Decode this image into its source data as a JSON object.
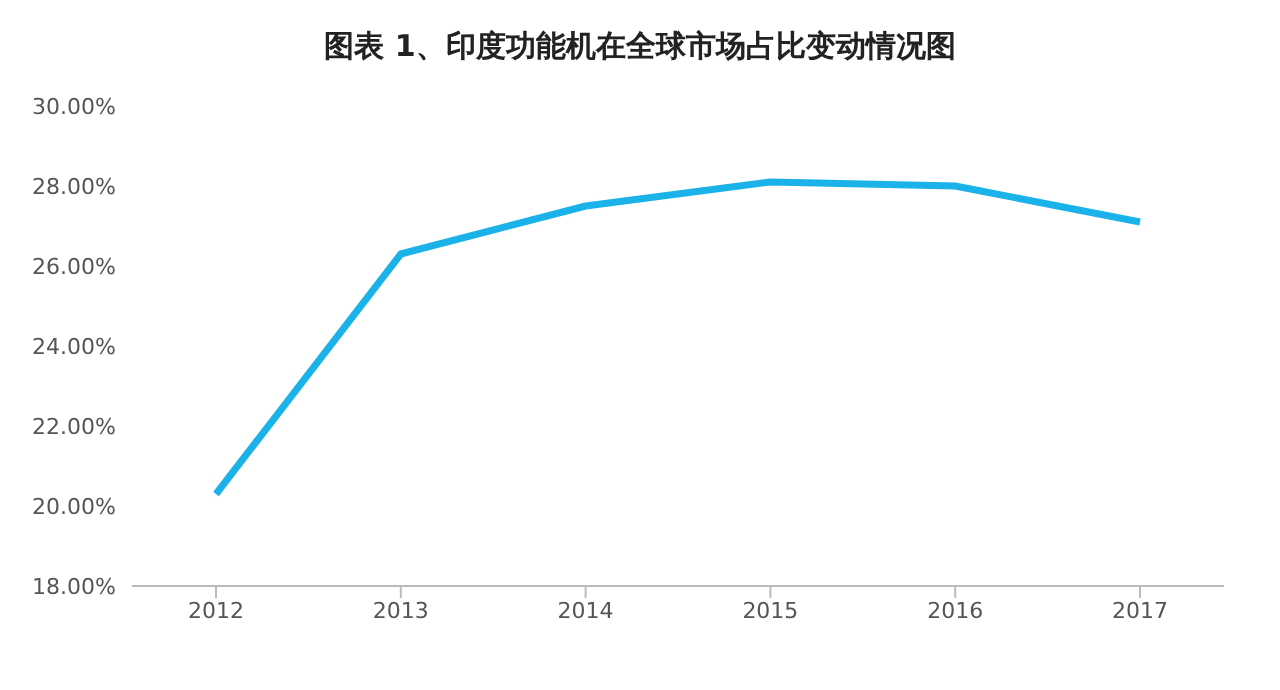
{
  "chart_data": {
    "type": "line",
    "title": "图表 1、印度功能机在全球市场占比变动情况图",
    "categories": [
      "2012",
      "2013",
      "2014",
      "2015",
      "2016",
      "2017"
    ],
    "series": [
      {
        "color": "#1ab2e8",
        "values": [
          20.3,
          26.3,
          27.5,
          28.1,
          28.0,
          27.1
        ]
      }
    ],
    "ylim": [
      18,
      30
    ],
    "yticks": [
      {
        "value": 18,
        "label": "18.00%"
      },
      {
        "value": 20,
        "label": "20.00%"
      },
      {
        "value": 22,
        "label": "22.00%"
      },
      {
        "value": 24,
        "label": "24.00%"
      },
      {
        "value": 26,
        "label": "26.00%"
      },
      {
        "value": 28,
        "label": "28.00%"
      },
      {
        "value": 30,
        "label": "30.00%"
      }
    ],
    "grid": false,
    "legend": false,
    "marker": "none",
    "line_style": "solid"
  }
}
